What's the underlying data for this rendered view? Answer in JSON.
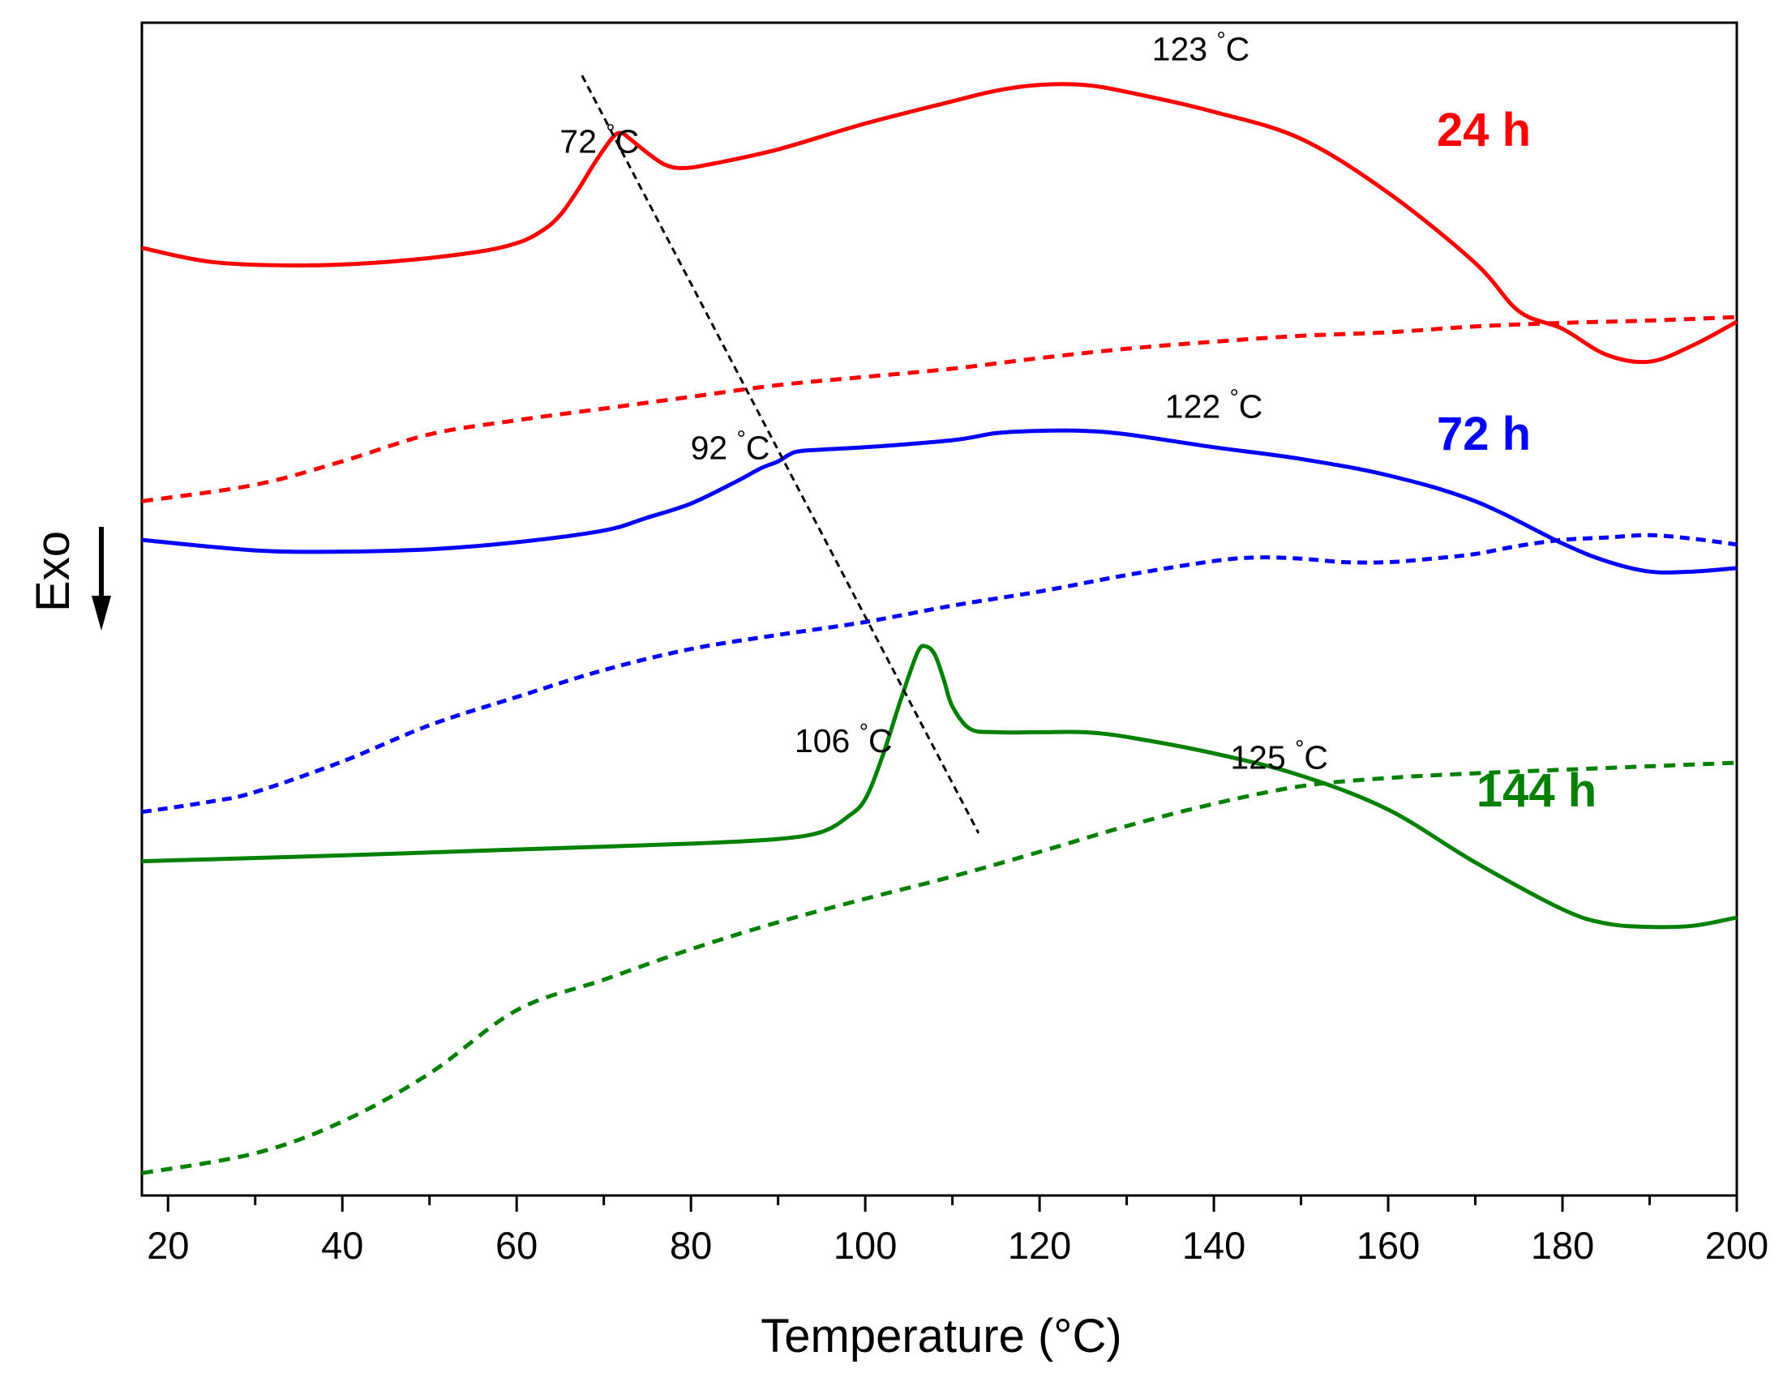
{
  "chart_data": {
    "type": "line",
    "title": "",
    "xlabel": "Temperature (°C)",
    "ylabel": "Exo",
    "xlim": [
      17,
      200
    ],
    "ylim": [
      0,
      100
    ],
    "xticks": [
      20,
      40,
      60,
      80,
      100,
      120,
      140,
      160,
      180,
      200
    ],
    "yticks_visible": false,
    "grid": false,
    "legend": "none",
    "series": [
      {
        "name": "24 h",
        "color": "#ff0000",
        "style": "solid",
        "label_text": "24 h",
        "x": [
          17,
          25,
          35,
          45,
          55,
          60,
          63,
          65,
          67,
          69,
          71,
          72,
          73,
          75,
          77,
          79,
          82,
          90,
          100,
          110,
          115,
          120,
          125,
          130,
          140,
          150,
          160,
          170,
          175,
          180,
          185,
          190,
          195,
          200
        ],
        "y": [
          80.8,
          79.6,
          79.3,
          79.6,
          80.4,
          81.2,
          82.3,
          83.6,
          85.7,
          88.1,
          90.2,
          90.6,
          90.1,
          88.9,
          87.9,
          87.6,
          87.9,
          89.2,
          91.4,
          93.3,
          94.2,
          94.7,
          94.7,
          94.1,
          92.4,
          90.1,
          85.5,
          79.5,
          75.4,
          73.9,
          71.7,
          71.1,
          72.5,
          74.5
        ]
      },
      {
        "name": "24 h reference",
        "color": "#ff0000",
        "style": "dashed",
        "x": [
          17,
          30,
          40,
          50,
          60,
          70,
          80,
          90,
          100,
          110,
          120,
          130,
          140,
          150,
          160,
          170,
          180,
          190,
          200
        ],
        "y": [
          59.2,
          60.6,
          62.6,
          64.9,
          66.1,
          67.1,
          68.1,
          69.1,
          69.8,
          70.5,
          71.4,
          72.2,
          72.8,
          73.3,
          73.6,
          74.1,
          74.4,
          74.6,
          74.9
        ]
      },
      {
        "name": "72 h",
        "color": "#0000ff",
        "style": "solid",
        "label_text": "72 h",
        "x": [
          17,
          30,
          40,
          50,
          60,
          70,
          75,
          80,
          85,
          88,
          90,
          92,
          95,
          100,
          110,
          115,
          120,
          125,
          130,
          140,
          150,
          160,
          170,
          180,
          185,
          190,
          195,
          200
        ],
        "y": [
          55.9,
          55.0,
          54.9,
          55.1,
          55.7,
          56.7,
          57.8,
          59.0,
          60.8,
          62.0,
          62.6,
          63.4,
          63.6,
          63.8,
          64.4,
          65.0,
          65.2,
          65.2,
          64.9,
          63.8,
          62.8,
          61.4,
          59.2,
          55.6,
          54.1,
          53.2,
          53.2,
          53.5
        ]
      },
      {
        "name": "72 h reference",
        "color": "#0000ff",
        "style": "dotted",
        "x": [
          17,
          25,
          30,
          40,
          50,
          60,
          70,
          80,
          90,
          100,
          110,
          120,
          130,
          140,
          145,
          150,
          155,
          160,
          165,
          170,
          175,
          180,
          185,
          190,
          195,
          200
        ],
        "y": [
          32.7,
          33.6,
          34.4,
          37.0,
          40.1,
          42.5,
          44.8,
          46.6,
          47.8,
          48.9,
          50.3,
          51.5,
          52.9,
          54.1,
          54.4,
          54.3,
          54.0,
          54.0,
          54.3,
          54.7,
          55.4,
          55.9,
          56.1,
          56.3,
          56.0,
          55.5
        ]
      },
      {
        "name": "144 h",
        "color": "#008000",
        "style": "solid",
        "label_text": "144 h",
        "x": [
          17,
          40,
          60,
          80,
          90,
          95,
          98,
          100,
          102,
          104,
          106,
          107,
          108,
          109,
          110,
          112,
          115,
          120,
          125,
          130,
          140,
          150,
          160,
          170,
          180,
          185,
          190,
          195,
          200
        ],
        "y": [
          28.5,
          29.0,
          29.5,
          30.0,
          30.4,
          31.0,
          32.3,
          33.8,
          37.5,
          42.1,
          46.3,
          46.8,
          46.1,
          44.0,
          41.7,
          39.8,
          39.5,
          39.5,
          39.5,
          39.1,
          37.7,
          35.8,
          32.9,
          28.4,
          24.4,
          23.2,
          22.9,
          23.0,
          23.7
        ]
      },
      {
        "name": "144 h reference",
        "color": "#008000",
        "style": "dashed",
        "x": [
          17,
          30,
          40,
          50,
          60,
          70,
          80,
          90,
          100,
          110,
          120,
          130,
          140,
          150,
          160,
          170,
          180,
          190,
          200
        ],
        "y": [
          1.9,
          3.6,
          6.3,
          10.4,
          15.8,
          18.4,
          21.0,
          23.3,
          25.3,
          27.2,
          29.3,
          31.5,
          33.4,
          34.9,
          35.6,
          36.0,
          36.3,
          36.6,
          36.9
        ]
      }
    ],
    "trend_line": {
      "name": "peak shift guide",
      "color": "#000000",
      "style": "dashed",
      "x": [
        67.5,
        113
      ],
      "y": [
        95.5,
        30.9
      ]
    },
    "annotations": [
      {
        "text": "72 °C",
        "x": 69.5,
        "y": 88.9
      },
      {
        "text": "123 °C",
        "x": 138.5,
        "y": 96.8
      },
      {
        "text": "92 °C",
        "x": 84.5,
        "y": 62.8
      },
      {
        "text": "122 °C",
        "x": 140,
        "y": 66.3
      },
      {
        "text": "106 °C",
        "x": 97.5,
        "y": 37.8
      },
      {
        "text": "125 °C",
        "x": 147.5,
        "y": 36.4
      }
    ]
  }
}
